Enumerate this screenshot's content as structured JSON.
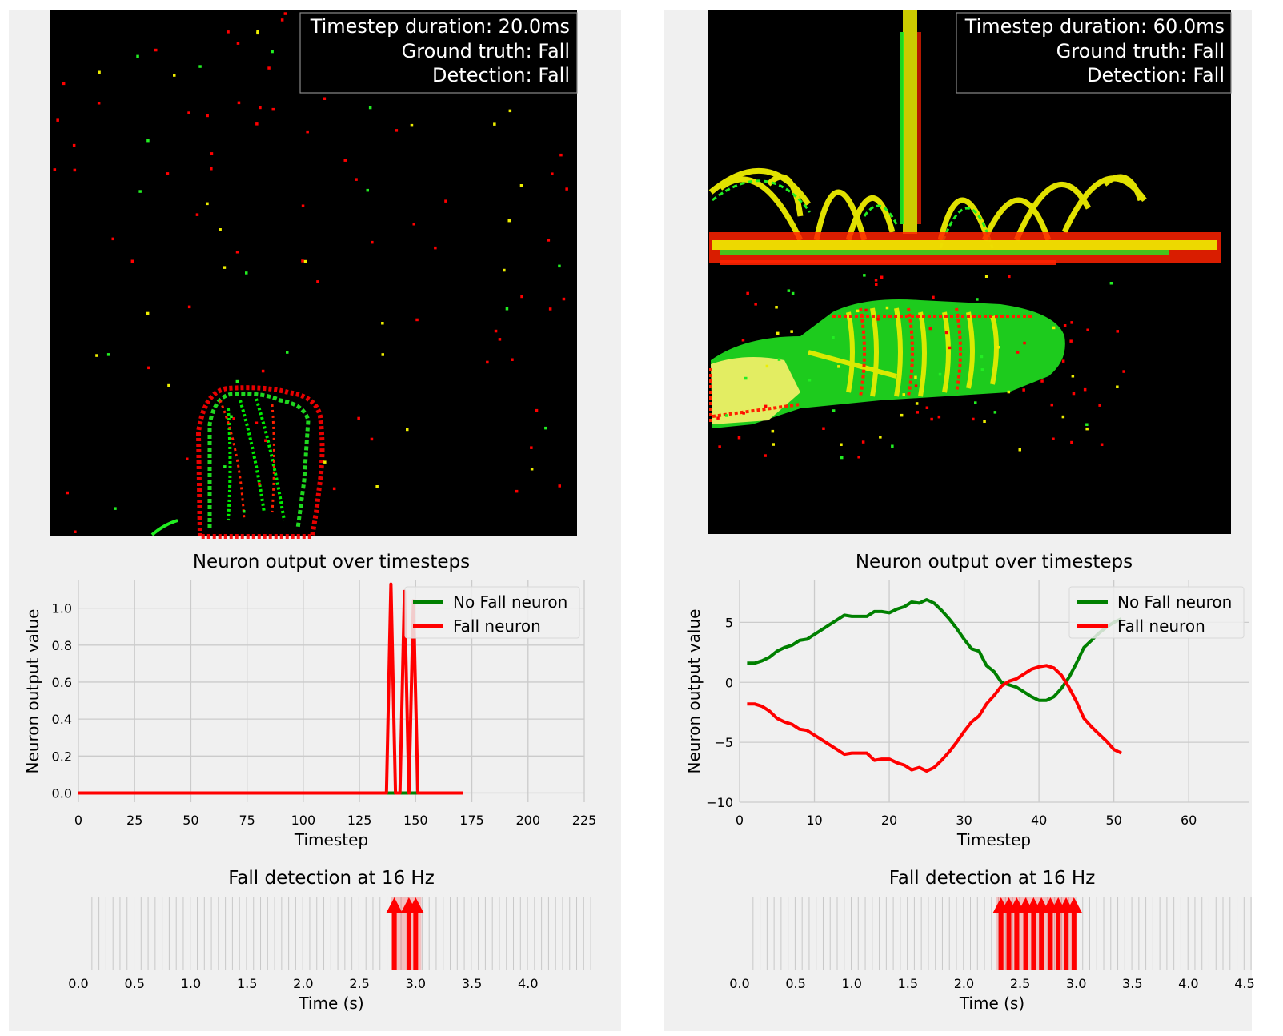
{
  "panels": [
    {
      "overlay": {
        "lines": [
          "Timestep duration: 20.0ms",
          "Ground truth: Fall",
          "Detection: Fall"
        ]
      },
      "chart_data": [
        {
          "type": "line",
          "title": "Neuron output over timesteps",
          "xlabel": "Timestep",
          "ylabel": "Neuron output value",
          "xlim": [
            0,
            225
          ],
          "ylim": [
            -0.05,
            1.15
          ],
          "xticks": [
            0,
            25,
            50,
            75,
            100,
            125,
            150,
            175,
            200,
            225
          ],
          "yticks": [
            0.0,
            0.2,
            0.4,
            0.6,
            0.8,
            1.0
          ],
          "tick_format": "fixed1y",
          "legend": "top-right",
          "series": [
            {
              "name": "No Fall neuron",
              "color": "#008000",
              "x": [
                0,
                171
              ],
              "y": [
                0,
                0
              ]
            },
            {
              "name": "Fall neuron",
              "color": "#ff0000",
              "x": [
                0,
                137,
                139,
                141,
                143,
                145,
                147,
                149,
                151,
                171
              ],
              "y": [
                0,
                0,
                1.13,
                0,
                0,
                1.09,
                0,
                1.04,
                0,
                0
              ]
            }
          ]
        },
        {
          "type": "event",
          "title": "Fall detection at 16 Hz",
          "xlabel": "Time (s)",
          "xlim": [
            0,
            4.5
          ],
          "xticks": [
            0.0,
            0.5,
            1.0,
            1.5,
            2.0,
            2.5,
            3.0,
            3.5,
            4.0
          ],
          "tick_count": 72,
          "tick_step": 0.0625,
          "highlight": [
            2.78,
            3.05
          ],
          "detections": [
            2.81,
            2.94,
            3.0
          ]
        }
      ]
    },
    {
      "overlay": {
        "lines": [
          "Timestep duration: 60.0ms",
          "Ground truth: Fall",
          "Detection: Fall"
        ]
      },
      "chart_data": [
        {
          "type": "line",
          "title": "Neuron output over timesteps",
          "xlabel": "Timestep",
          "ylabel": "Neuron output value",
          "xlim": [
            0,
            68
          ],
          "ylim": [
            -10,
            8.5
          ],
          "xticks": [
            0,
            10,
            20,
            30,
            40,
            50,
            60
          ],
          "yticks": [
            -10,
            -5,
            0,
            5
          ],
          "tick_format": "signed",
          "legend": "top-right",
          "series": [
            {
              "name": "No Fall neuron",
              "color": "#008000",
              "x": [
                1,
                2,
                3,
                4,
                5,
                6,
                7,
                8,
                9,
                10,
                11,
                12,
                13,
                14,
                15,
                16,
                17,
                18,
                19,
                20,
                21,
                22,
                23,
                24,
                25,
                26,
                27,
                28,
                29,
                30,
                31,
                32,
                33,
                34,
                35,
                36,
                37,
                38,
                39,
                40,
                41,
                42,
                43,
                44,
                45,
                46,
                47,
                48,
                49,
                50,
                51
              ],
              "y": [
                1.6,
                1.6,
                1.8,
                2.1,
                2.6,
                2.9,
                3.1,
                3.5,
                3.6,
                4.0,
                4.4,
                4.8,
                5.2,
                5.6,
                5.5,
                5.5,
                5.5,
                5.9,
                5.9,
                5.8,
                6.1,
                6.3,
                6.7,
                6.6,
                6.9,
                6.6,
                6.0,
                5.3,
                4.5,
                3.6,
                2.8,
                2.6,
                1.4,
                0.9,
                0.0,
                -0.2,
                -0.4,
                -0.8,
                -1.2,
                -1.5,
                -1.5,
                -1.2,
                -0.5,
                0.4,
                1.6,
                2.9,
                3.5,
                4.1,
                4.6,
                5.0,
                5.3
              ]
            },
            {
              "name": "Fall neuron",
              "color": "#ff0000",
              "x": [
                1,
                2,
                3,
                4,
                5,
                6,
                7,
                8,
                9,
                10,
                11,
                12,
                13,
                14,
                15,
                16,
                17,
                18,
                19,
                20,
                21,
                22,
                23,
                24,
                25,
                26,
                27,
                28,
                29,
                30,
                31,
                32,
                33,
                34,
                35,
                36,
                37,
                38,
                39,
                40,
                41,
                42,
                43,
                44,
                45,
                46,
                47,
                48,
                49,
                50,
                51
              ],
              "y": [
                -1.8,
                -1.8,
                -2.0,
                -2.4,
                -3.0,
                -3.3,
                -3.5,
                -3.9,
                -4.0,
                -4.4,
                -4.8,
                -5.2,
                -5.6,
                -6.0,
                -5.9,
                -5.9,
                -5.9,
                -6.5,
                -6.4,
                -6.4,
                -6.7,
                -6.9,
                -7.3,
                -7.1,
                -7.4,
                -7.1,
                -6.5,
                -5.8,
                -5.0,
                -4.1,
                -3.3,
                -2.8,
                -1.8,
                -1.1,
                -0.3,
                0.1,
                0.3,
                0.7,
                1.1,
                1.3,
                1.4,
                1.2,
                0.6,
                -0.4,
                -1.6,
                -3.0,
                -3.7,
                -4.3,
                -4.9,
                -5.6,
                -5.9
              ]
            }
          ]
        },
        {
          "type": "event",
          "title": "Fall detection at 16 Hz",
          "xlabel": "Time (s)",
          "xlim": [
            0,
            4.5
          ],
          "xticks": [
            0.0,
            0.5,
            1.0,
            1.5,
            2.0,
            2.5,
            3.0,
            3.5,
            4.0,
            4.5
          ],
          "tick_count": 72,
          "tick_step": 0.0625,
          "highlight": [
            2.29,
            2.98
          ],
          "detections": [
            2.33,
            2.4,
            2.47,
            2.55,
            2.62,
            2.69,
            2.77,
            2.84,
            2.91,
            2.98
          ]
        }
      ]
    }
  ]
}
